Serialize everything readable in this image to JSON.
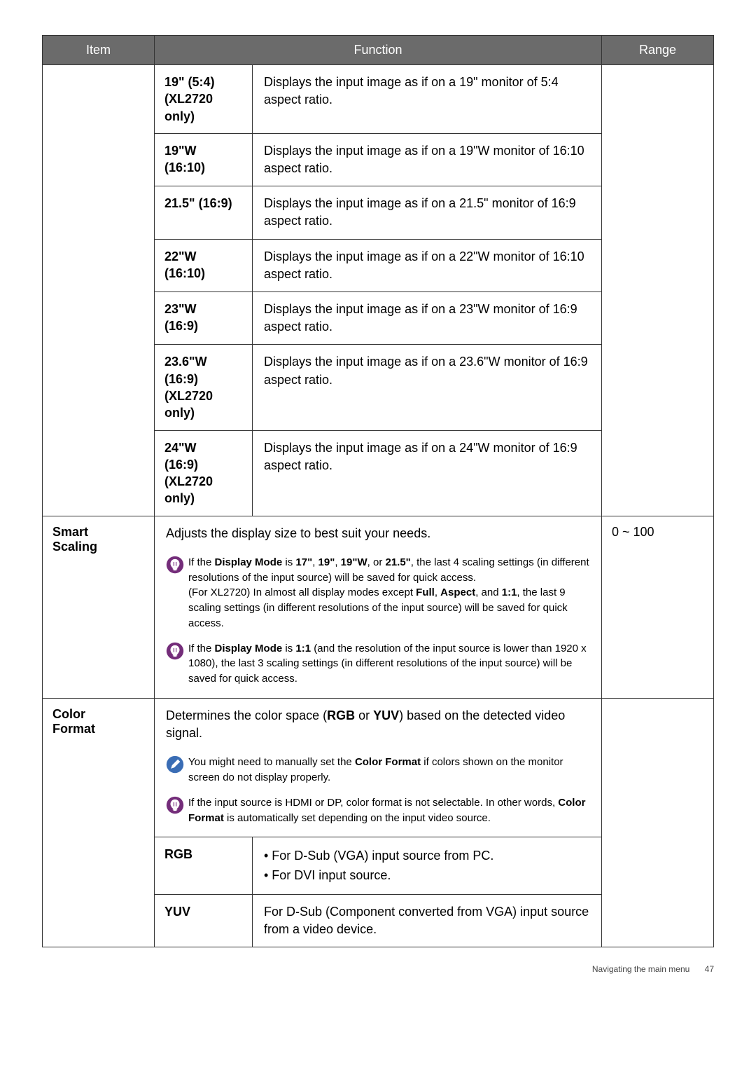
{
  "header": {
    "item": "Item",
    "function": "Function",
    "range": "Range"
  },
  "modes": [
    {
      "label": "19\" (5:4)\n(XL2720 only)",
      "desc": "Displays the input image as if on a 19\" monitor of 5:4 aspect ratio."
    },
    {
      "label": "19\"W\n(16:10)",
      "desc": "Displays the input image as if on a 19\"W monitor of 16:10 aspect ratio."
    },
    {
      "label": "21.5\" (16:9)",
      "desc": "Displays the input image as if on a 21.5\" monitor of 16:9 aspect ratio."
    },
    {
      "label": "22\"W\n(16:10)",
      "desc": "Displays the input image as if on a 22\"W monitor of 16:10 aspect ratio."
    },
    {
      "label": "23\"W\n(16:9)",
      "desc": "Displays the input image as if on a 23\"W monitor of 16:9 aspect ratio."
    },
    {
      "label": "23.6\"W\n(16:9)\n(XL2720 only)",
      "desc": "Displays the input image as if on a 23.6\"W monitor of 16:9 aspect ratio."
    },
    {
      "label": "24\"W\n(16:9)\n(XL2720 only)",
      "desc": "Displays the input image as if on a 24\"W monitor of 16:9 aspect ratio."
    }
  ],
  "smart": {
    "item": "Smart Scaling",
    "intro": "Adjusts the display size to best suit your needs.",
    "range": "0 ~ 100",
    "note1_pre": "If the ",
    "note1_b1": "Display Mode",
    "note1_mid1": " is ",
    "note1_b2": "17\"",
    "note1_mid2": ", ",
    "note1_b3": "19\"",
    "note1_mid3": ", ",
    "note1_b4": "19\"W",
    "note1_mid4": ", or ",
    "note1_b5": "21.5\"",
    "note1_mid5": ", the last 4 scaling settings (in different resolutions of the input source) will be saved for quick access.",
    "note1_br": "(For XL2720) In almost all display modes except ",
    "note1_b6": "Full",
    "note1_mid6": ", ",
    "note1_b7": "Aspect",
    "note1_mid7": ", and ",
    "note1_b8": "1:1",
    "note1_mid8": ", the last 9 scaling settings (in different resolutions of the input source) will be saved for quick access.",
    "note2_pre": "If the ",
    "note2_b1": "Display Mode",
    "note2_mid1": " is ",
    "note2_b2": "1:1",
    "note2_mid2": " (and the resolution of the input source is lower than 1920 x 1080), the last 3 scaling settings (in different resolutions of the input source) will be saved for quick access."
  },
  "color": {
    "item": "Color Format",
    "intro_pre": "Determines the color space (",
    "intro_b1": "RGB",
    "intro_mid": " or ",
    "intro_b2": "YUV",
    "intro_post": ") based on the detected video signal.",
    "noteA_pre": "You might need to manually set the ",
    "noteA_b": "Color Format",
    "noteA_post": " if colors shown on the monitor screen do not display properly.",
    "noteB_pre": "If the input source is HDMI or DP, color format is not selectable. In other words, ",
    "noteB_b": "Color Format",
    "noteB_post": " is automatically set depending on the input video source.",
    "rgb": {
      "label": "RGB",
      "b1": "• For D-Sub (VGA) input source from PC.",
      "b2": "• For DVI input source."
    },
    "yuv": {
      "label": "YUV",
      "desc": "For D-Sub (Component converted from VGA) input source from a video device."
    }
  },
  "footer": {
    "title": "Navigating the main menu",
    "page": "47"
  },
  "icons": {
    "bulb_bg": "#742d7a",
    "pencil_bg": "#3a6db5",
    "fg": "#ffffff"
  }
}
